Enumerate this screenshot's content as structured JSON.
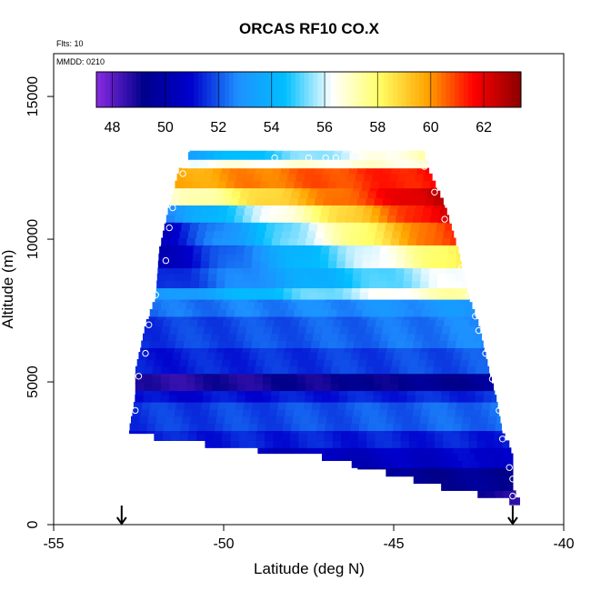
{
  "chart_data": {
    "type": "heatmap",
    "title": "ORCAS RF10 CO.X",
    "annotations": {
      "flights": "Flts: 10",
      "date": "MMDD: 0210"
    },
    "xlabel": "Latitude (deg N)",
    "ylabel": "Altitude (m)",
    "xlim": [
      -55,
      -40
    ],
    "ylim": [
      0,
      16500
    ],
    "x_ticks": [
      -55,
      -50,
      -45,
      -40
    ],
    "x_tick_labels": [
      "-55",
      "-50",
      "-45",
      "-40"
    ],
    "y_ticks": [
      0,
      5000,
      10000,
      15000
    ],
    "y_tick_labels": [
      "0",
      "5000",
      "10000",
      "15000"
    ],
    "grid": false,
    "colorbar": {
      "placement": "top-inside",
      "range": [
        47.4,
        63.4
      ],
      "ticks": [
        48,
        50,
        52,
        54,
        56,
        58,
        60,
        62
      ],
      "tick_labels": [
        "48",
        "50",
        "52",
        "54",
        "56",
        "58",
        "60",
        "62"
      ],
      "colors": [
        "#8a2be2",
        "#00008b",
        "#0000cd",
        "#1e90ff",
        "#00bfff",
        "#ffffff",
        "#ffff66",
        "#ffa500",
        "#ff0000",
        "#8b0000"
      ]
    },
    "profile_bounds": [
      {
        "alt": 900,
        "west": -41.6,
        "east": -41.3
      },
      {
        "alt": 1200,
        "west": -43.2,
        "east": -41.5
      },
      {
        "alt": 1600,
        "west": -44.5,
        "east": -41.5
      },
      {
        "alt": 2000,
        "west": -45.8,
        "east": -41.5
      },
      {
        "alt": 2400,
        "west": -47.2,
        "east": -41.5
      },
      {
        "alt": 2800,
        "west": -50.4,
        "east": -41.6
      },
      {
        "alt": 3200,
        "west": -52.8,
        "east": -41.8
      },
      {
        "alt": 4500,
        "west": -52.6,
        "east": -42.0
      },
      {
        "alt": 5400,
        "west": -52.6,
        "east": -42.2
      },
      {
        "alt": 7000,
        "west": -52.3,
        "east": -42.5
      },
      {
        "alt": 8000,
        "west": -52.0,
        "east": -42.8
      },
      {
        "alt": 9600,
        "west": -51.9,
        "east": -43.1
      },
      {
        "alt": 11200,
        "west": -51.6,
        "east": -43.5
      },
      {
        "alt": 12500,
        "west": -51.3,
        "east": -44.0
      },
      {
        "alt": 13000,
        "west": -51.0,
        "east": -44.1
      }
    ],
    "layers": [
      {
        "alt": [
          700,
          1200
        ],
        "values": [
          48.8
        ]
      },
      {
        "alt": [
          1200,
          2000
        ],
        "values": [
          49.4
        ]
      },
      {
        "alt": [
          2000,
          2700
        ],
        "values": [
          50.4,
          51.0
        ]
      },
      {
        "alt": [
          2700,
          3300
        ],
        "values": [
          51.3
        ]
      },
      {
        "alt": [
          3300,
          4300
        ],
        "values": [
          51.6,
          52.3
        ]
      },
      {
        "alt": [
          4300,
          4700
        ],
        "values": [
          51.0,
          51.5
        ]
      },
      {
        "alt": [
          4700,
          5300
        ],
        "values": [
          48.6,
          49.5
        ]
      },
      {
        "alt": [
          5300,
          6200
        ],
        "values": [
          51.2,
          52.0
        ]
      },
      {
        "alt": [
          6200,
          7300
        ],
        "values": [
          51.6,
          52.6
        ]
      },
      {
        "alt": [
          7300,
          7900
        ],
        "values": [
          52.3,
          53.0
        ]
      },
      {
        "alt": [
          7900,
          8300
        ],
        "values": [
          52.8,
          57.5
        ]
      },
      {
        "alt": [
          8300,
          9000
        ],
        "values": [
          51.2,
          56.5
        ]
      },
      {
        "alt": [
          9000,
          9800
        ],
        "values": [
          50.2,
          58.6
        ]
      },
      {
        "alt": [
          9800,
          10600
        ],
        "values": [
          50.6,
          61.4
        ]
      },
      {
        "alt": [
          10600,
          11200
        ],
        "values": [
          52.6,
          62.4
        ]
      },
      {
        "alt": [
          11200,
          11800
        ],
        "values": [
          56.6,
          62.8
        ]
      },
      {
        "alt": [
          11800,
          12500
        ],
        "values": [
          59.6,
          61.6
        ]
      },
      {
        "alt": [
          12500,
          12800
        ],
        "values": [
          56.4,
          56.8
        ]
      },
      {
        "alt": [
          12800,
          13100
        ],
        "values": [
          53.6,
          57.2
        ]
      }
    ],
    "track_points": [
      {
        "lat": -51.2,
        "alt": 12300
      },
      {
        "lat": -51.5,
        "alt": 11100
      },
      {
        "lat": -51.6,
        "alt": 10400
      },
      {
        "lat": -51.7,
        "alt": 9250
      },
      {
        "lat": -52.0,
        "alt": 8050
      },
      {
        "lat": -52.2,
        "alt": 7000
      },
      {
        "lat": -52.3,
        "alt": 6000
      },
      {
        "lat": -52.5,
        "alt": 5200
      },
      {
        "lat": -52.6,
        "alt": 4000
      },
      {
        "lat": -52.7,
        "alt": 3000
      },
      {
        "lat": -48.5,
        "alt": 12850
      },
      {
        "lat": -47.5,
        "alt": 12850
      },
      {
        "lat": -47.0,
        "alt": 12850
      },
      {
        "lat": -46.7,
        "alt": 12850
      },
      {
        "lat": -45.9,
        "alt": 12850
      },
      {
        "lat": -45.1,
        "alt": 12900
      },
      {
        "lat": -44.1,
        "alt": 12550
      },
      {
        "lat": -43.8,
        "alt": 11650
      },
      {
        "lat": -43.5,
        "alt": 10700
      },
      {
        "lat": -43.0,
        "alt": 9000
      },
      {
        "lat": -42.8,
        "alt": 8000
      },
      {
        "lat": -42.6,
        "alt": 7300
      },
      {
        "lat": -42.5,
        "alt": 6800
      },
      {
        "lat": -42.3,
        "alt": 6000
      },
      {
        "lat": -42.1,
        "alt": 5100
      },
      {
        "lat": -41.9,
        "alt": 4000
      },
      {
        "lat": -41.8,
        "alt": 3000
      },
      {
        "lat": -41.6,
        "alt": 2000
      },
      {
        "lat": -41.5,
        "alt": 1600
      },
      {
        "lat": -41.5,
        "alt": 1000
      }
    ],
    "markers": [
      {
        "lat": -53.0,
        "alt": 0
      },
      {
        "lat": -41.5,
        "alt": 0
      }
    ]
  }
}
